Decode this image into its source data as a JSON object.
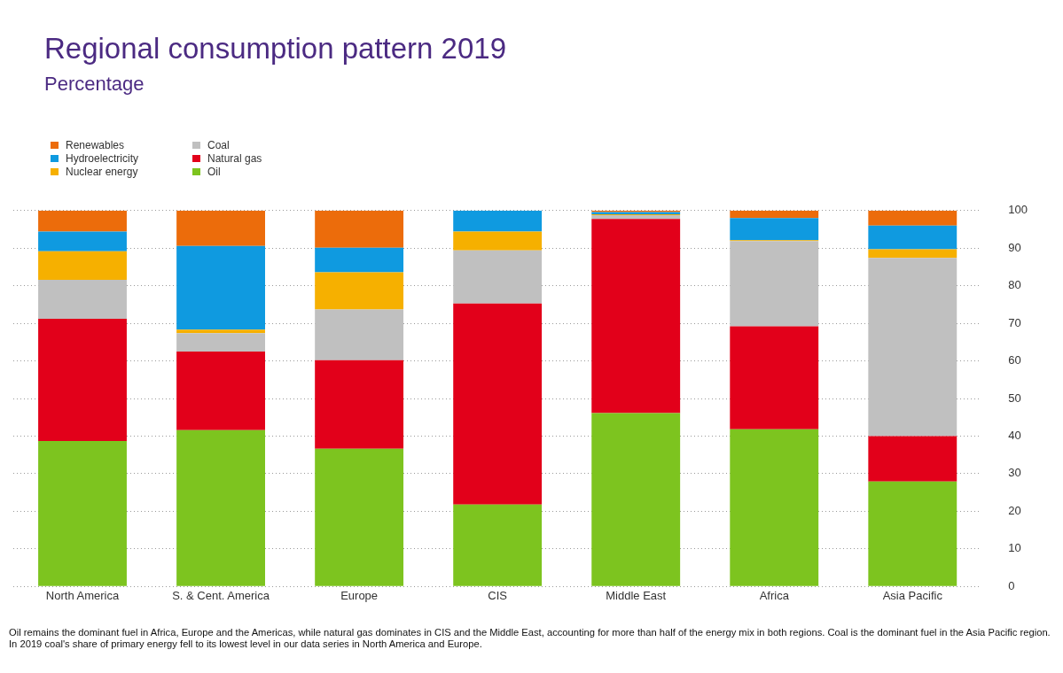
{
  "chart_data": {
    "type": "bar",
    "title": "Regional consumption pattern 2019",
    "subtitle": "Percentage",
    "categories": [
      "North America",
      "S. & Cent. America",
      "Europe",
      "CIS",
      "Middle East",
      "Africa",
      "Asia Pacific"
    ],
    "stacked": true,
    "ylim": [
      0,
      100
    ],
    "yticks": [
      0,
      10,
      20,
      30,
      40,
      50,
      60,
      70,
      80,
      90,
      100
    ],
    "grid": "y",
    "legend": "top left",
    "series": [
      {
        "name": "Oil",
        "color": "#7dc41f",
        "values": [
          38.7,
          41.6,
          36.6,
          21.8,
          46.1,
          41.8,
          27.9
        ]
      },
      {
        "name": "Natural gas",
        "color": "#e2001a",
        "values": [
          32.5,
          20.9,
          23.6,
          53.5,
          51.7,
          27.4,
          12.1
        ]
      },
      {
        "name": "Coal",
        "color": "#c0c0c0",
        "values": [
          10.4,
          4.9,
          13.5,
          14.1,
          1.0,
          22.7,
          47.4
        ]
      },
      {
        "name": "Nuclear energy",
        "color": "#f6b000",
        "values": [
          7.6,
          0.9,
          9.9,
          5.0,
          0.2,
          0.2,
          2.3
        ]
      },
      {
        "name": "Hydroelectricity",
        "color": "#0f9ae0",
        "values": [
          5.2,
          22.3,
          6.5,
          5.6,
          0.6,
          5.9,
          6.3
        ]
      },
      {
        "name": "Renewables",
        "color": "#ec6c0b",
        "values": [
          5.6,
          9.4,
          9.9,
          0.0,
          0.4,
          2.0,
          4.0
        ]
      }
    ],
    "annotations": [
      "Oil remains the dominant fuel in Africa, Europe and the Americas, while natural gas dominates in CIS and the Middle East, accounting for more than half of the energy mix in both regions. Coal is the dominant fuel in the Asia Pacific region. In 2019 coal's share of primary energy fell to its lowest level in our data series in North America and Europe."
    ]
  }
}
